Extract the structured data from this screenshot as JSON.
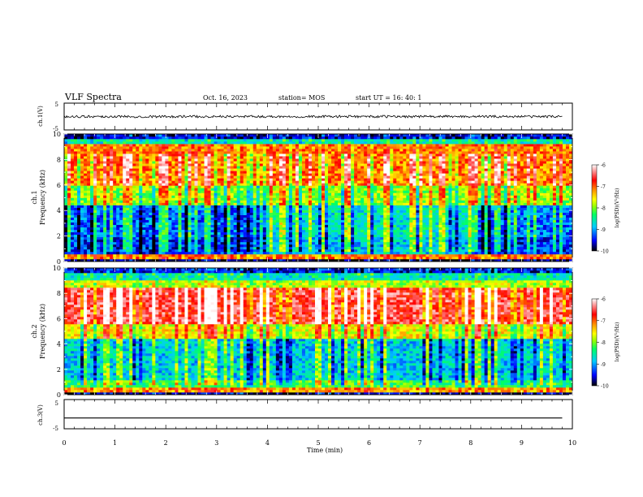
{
  "header": {
    "title": "VLF Spectra",
    "date": "Oct. 16, 2023",
    "station": "station= MOS",
    "start": "start  UT =   16: 40: 1"
  },
  "panels": {
    "ch1v_label": "ch.1(V)",
    "ch3v_label": "ch.3(V)",
    "ch1_label": "ch.1",
    "ch2_label": "ch.2",
    "freq_label": "Frequency (kHz)",
    "xlabel": "Time (min)",
    "cbar_label": "log(PSD)(V²/Hz)"
  },
  "colors": {
    "colormap": [
      "#000000",
      "#0000ff",
      "#00ccff",
      "#00ff66",
      "#99ff00",
      "#ffff00",
      "#ff9900",
      "#ff0000",
      "#ffffff"
    ]
  },
  "chart_data": [
    {
      "type": "line",
      "name": "ch.1(V)",
      "x": [
        0,
        9.8
      ],
      "y": [
        0,
        0
      ],
      "ylim": [
        -5,
        5
      ],
      "yticks": [
        "5",
        "-5"
      ]
    },
    {
      "type": "heatmap",
      "name": "ch.1",
      "ylabel": "Frequency (kHz)",
      "xlim": [
        0,
        10
      ],
      "ylim": [
        0,
        10
      ],
      "yticks": [
        "0",
        "2",
        "4",
        "6",
        "8",
        "10"
      ],
      "colorbar": {
        "range": [
          -10,
          -6
        ],
        "ticks": [
          "-6",
          "-7",
          "-8",
          "-9",
          "-10"
        ],
        "label": "log(PSD)(V²/Hz)"
      }
    },
    {
      "type": "heatmap",
      "name": "ch.2",
      "ylabel": "Frequency (kHz)",
      "xlim": [
        0,
        10
      ],
      "ylim": [
        0,
        10
      ],
      "yticks": [
        "0",
        "2",
        "4",
        "6",
        "8",
        "10"
      ],
      "colorbar": {
        "range": [
          -10,
          -6
        ],
        "ticks": [
          "-6",
          "-7",
          "-8",
          "-9",
          "-10"
        ],
        "label": "log(PSD)(V²/Hz)"
      }
    },
    {
      "type": "line",
      "name": "ch.3(V)",
      "x": [
        0,
        9.8
      ],
      "y": [
        -1.3,
        -1.3
      ],
      "ylim": [
        -5,
        5
      ],
      "yticks": [
        "5",
        "-5"
      ],
      "xlabel": "Time (min)",
      "xticks": [
        "0",
        "1",
        "2",
        "3",
        "4",
        "5",
        "6",
        "7",
        "8",
        "9",
        "10"
      ]
    }
  ]
}
